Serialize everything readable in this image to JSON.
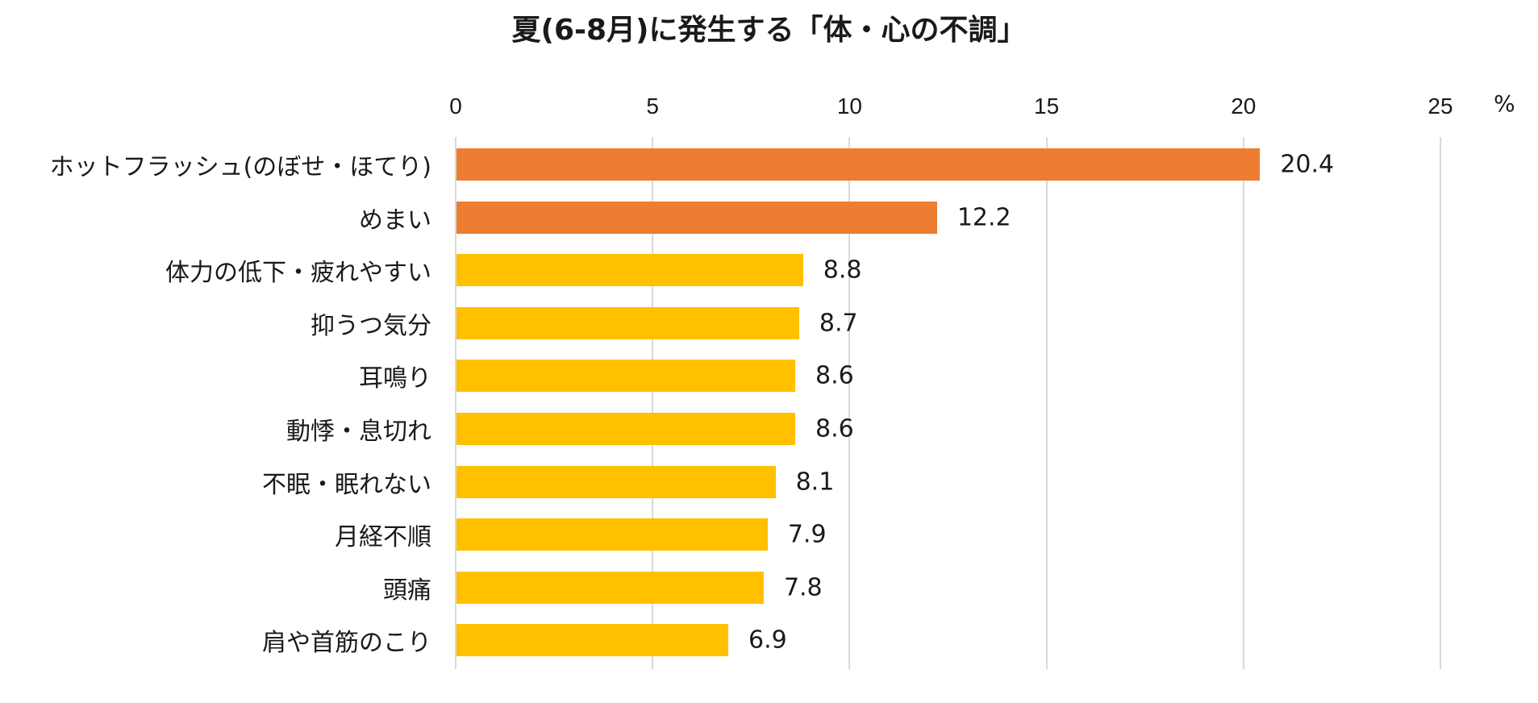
{
  "chart_data": {
    "type": "bar",
    "orientation": "horizontal",
    "title": "夏(6-8月)に発生する「体・心の不調」",
    "xlabel": "",
    "ylabel": "",
    "unit": "%",
    "xlim": [
      0,
      25
    ],
    "xticks": [
      "0",
      "5",
      "10",
      "15",
      "20",
      "25"
    ],
    "grid": true,
    "legend": null,
    "categories": [
      "ホットフラッシュ(のぼせ・ほてり)",
      "めまい",
      "体力の低下・疲れやすい",
      "抑うつ気分",
      "耳鳴り",
      "動悸・息切れ",
      "不眠・眠れない",
      "月経不順",
      "頭痛",
      "肩や首筋のこり"
    ],
    "values": [
      20.4,
      12.2,
      8.8,
      8.7,
      8.6,
      8.6,
      8.1,
      7.9,
      7.8,
      6.9
    ],
    "value_labels": [
      "20.4",
      "12.2",
      "8.8",
      "8.7",
      "8.6",
      "8.6",
      "8.1",
      "7.9",
      "7.8",
      "6.9"
    ],
    "bar_colors": [
      "#ED7D31",
      "#ED7D31",
      "#FFC000",
      "#FFC000",
      "#FFC000",
      "#FFC000",
      "#FFC000",
      "#FFC000",
      "#FFC000",
      "#FFC000"
    ]
  },
  "colors": {
    "highlight": "#ED7D31",
    "default": "#FFC000",
    "grid": "#D9D9D9",
    "text": "#1A1A1A"
  }
}
